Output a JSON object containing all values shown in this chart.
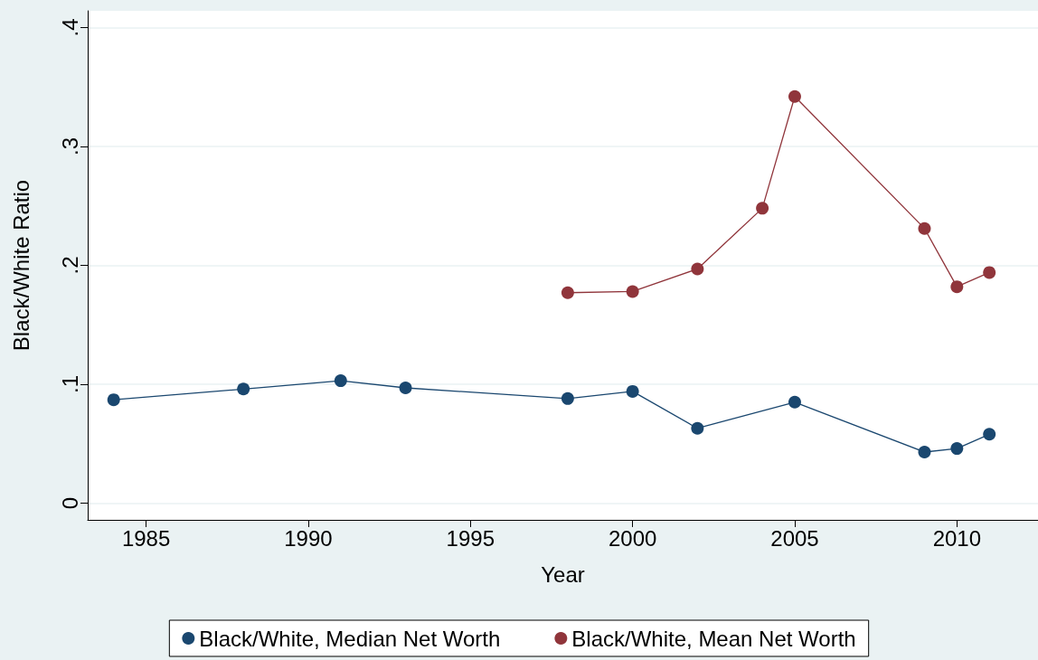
{
  "chart_data": {
    "type": "line",
    "xlabel": "Year",
    "ylabel": "Black/White Ratio",
    "series": [
      {
        "name": "Black/White, Median Net Worth",
        "color": "#1a476f",
        "x": [
          1984,
          1988,
          1991,
          1993,
          1998,
          2000,
          2002,
          2005,
          2009,
          2010,
          2011
        ],
        "values": [
          0.087,
          0.096,
          0.103,
          0.097,
          0.088,
          0.094,
          0.063,
          0.085,
          0.043,
          0.046,
          0.058
        ]
      },
      {
        "name": "Black/White, Mean Net Worth",
        "color": "#90353b",
        "x": [
          1998,
          2000,
          2002,
          2004,
          2005,
          2009,
          2010,
          2011
        ],
        "values": [
          0.177,
          0.178,
          0.197,
          0.248,
          0.342,
          0.231,
          0.182,
          0.194
        ]
      }
    ],
    "xlim": [
      1983.2,
      2012.5
    ],
    "xticks": [
      1985,
      1990,
      1995,
      2000,
      2005,
      2010
    ],
    "ylim": [
      -0.014,
      0.414
    ],
    "yticks": [
      {
        "value": 0,
        "label": "0"
      },
      {
        "value": 0.1,
        "label": ".1"
      },
      {
        "value": 0.2,
        "label": ".2"
      },
      {
        "value": 0.3,
        "label": ".3"
      },
      {
        "value": 0.4,
        "label": ".4"
      }
    ],
    "grid": "y",
    "legend": "bottom",
    "marker": "circle",
    "line_style": "solid"
  }
}
